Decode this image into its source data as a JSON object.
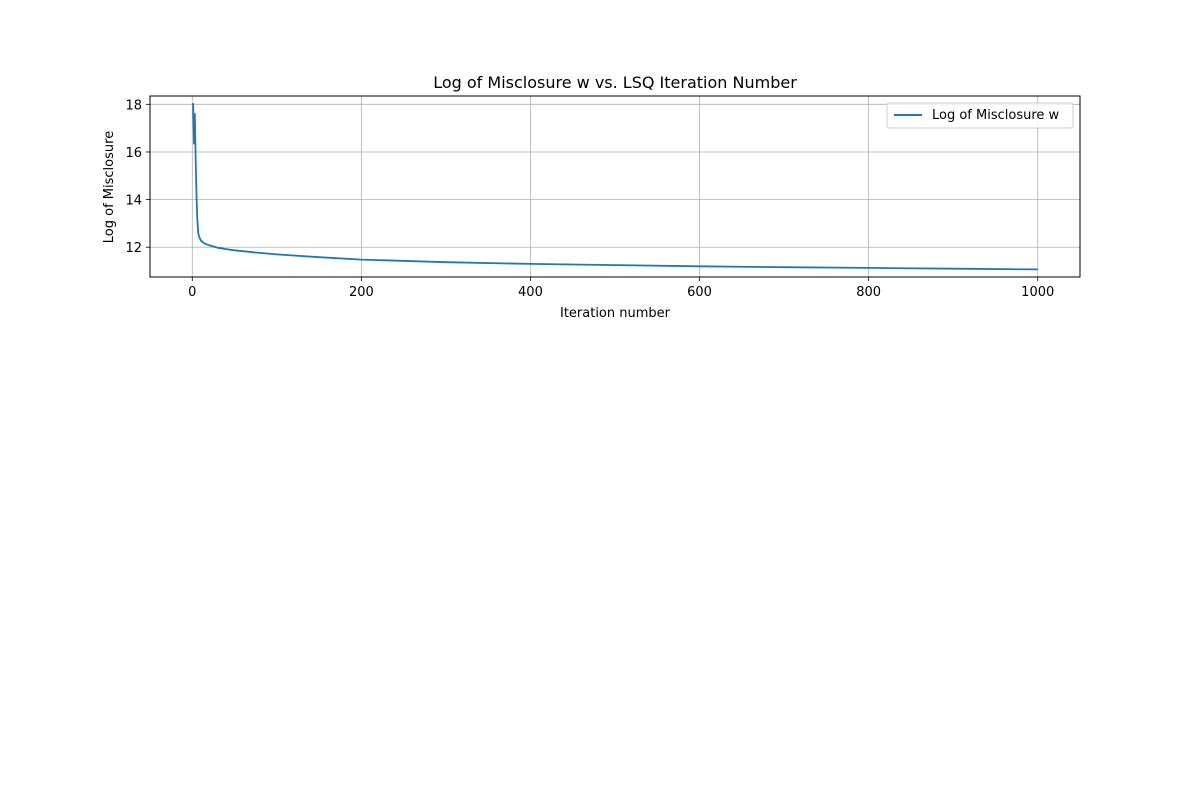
{
  "chart_data": {
    "type": "line",
    "title": "Log of Misclosure w vs. LSQ Iteration Number",
    "xlabel": "Iteration number",
    "ylabel": "Log of Misclosure",
    "xlim": [
      -50,
      1050
    ],
    "ylim": [
      10.75,
      18.35
    ],
    "xticks": [
      0,
      200,
      400,
      600,
      800,
      1000
    ],
    "yticks": [
      12,
      14,
      16,
      18
    ],
    "grid": true,
    "legend_position": "upper right",
    "series": [
      {
        "name": "Log of Misclosure w",
        "color": "#1f77b4",
        "x": [
          1,
          2,
          3,
          4,
          5,
          6,
          7,
          8,
          10,
          12,
          15,
          20,
          30,
          40,
          50,
          75,
          100,
          150,
          200,
          300,
          400,
          500,
          600,
          700,
          800,
          900,
          1000
        ],
        "y": [
          18.05,
          16.35,
          17.6,
          15.6,
          14.2,
          13.2,
          12.6,
          12.45,
          12.3,
          12.22,
          12.15,
          12.08,
          11.98,
          11.92,
          11.87,
          11.78,
          11.7,
          11.58,
          11.48,
          11.37,
          11.3,
          11.25,
          11.2,
          11.16,
          11.13,
          11.1,
          11.07
        ]
      }
    ]
  }
}
